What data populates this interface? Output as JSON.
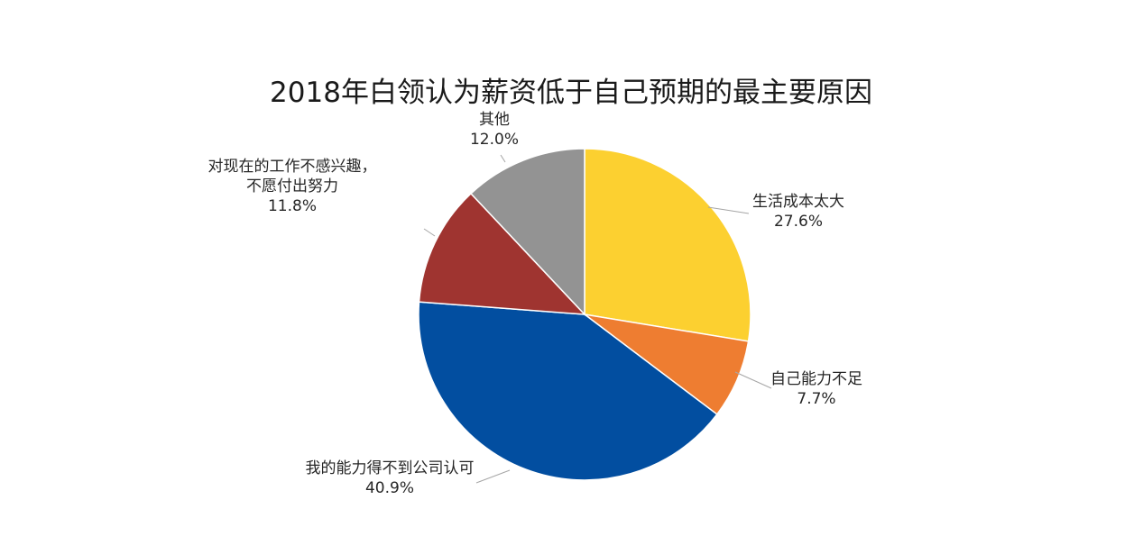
{
  "chart_data": {
    "type": "pie",
    "title": "2018年白领认为薪资低于自己预期的最主要原因",
    "slices": [
      {
        "label_lines": [
          "生活成本太大"
        ],
        "value": 27.6,
        "display": "27.6%",
        "color": "#fcd030"
      },
      {
        "label_lines": [
          "自己能力不足"
        ],
        "value": 7.7,
        "display": "7.7%",
        "color": "#ee7d31"
      },
      {
        "label_lines": [
          "我的能力得不到公司认可"
        ],
        "value": 40.9,
        "display": "40.9%",
        "color": "#024ea0"
      },
      {
        "label_lines": [
          "对现在的工作不感兴趣，",
          "不愿付出努力"
        ],
        "value": 11.8,
        "display": "11.8%",
        "color": "#9f3430"
      },
      {
        "label_lines": [
          "其他"
        ],
        "value": 12.0,
        "display": "12.0%",
        "color": "#939393"
      }
    ],
    "legend": "none",
    "start_angle": "12 o'clock, clockwise"
  }
}
